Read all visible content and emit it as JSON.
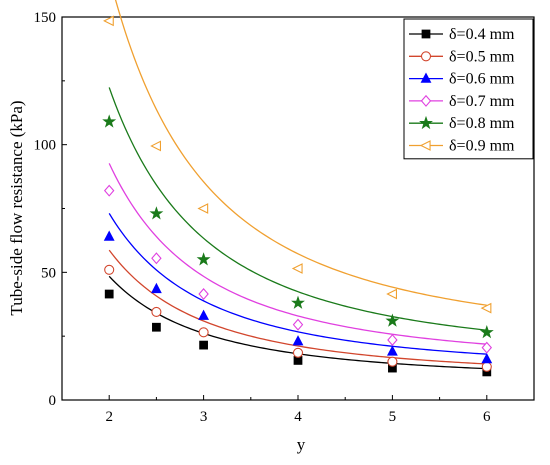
{
  "chart_data": {
    "type": "line",
    "xlabel": "y",
    "ylabel": "Tube-side flow resistance (kPa)",
    "xlim": [
      1.5,
      6.5
    ],
    "ylim": [
      0,
      150
    ],
    "xticks": [
      2,
      3,
      4,
      5,
      6
    ],
    "xtick_labels": [
      "2",
      "3",
      "4",
      "5",
      "6"
    ],
    "yticks": [
      0,
      50,
      100,
      150
    ],
    "ytick_labels": [
      "0",
      "50",
      "100",
      "150"
    ],
    "grid": false,
    "legend_position": "top-right",
    "x": [
      2,
      2.5,
      3,
      4,
      5,
      6
    ],
    "series": [
      {
        "name": "δ=0.4 mm",
        "color": "#000000",
        "marker": "square-filled",
        "values": [
          41.5,
          28.5,
          21.5,
          15.5,
          12.5,
          11.0
        ],
        "fit": {
          "a": 157.5,
          "b": -1.94,
          "c": 7.4
        }
      },
      {
        "name": "δ=0.5 mm",
        "color": "#d2462d",
        "marker": "circle-open",
        "values": [
          51.0,
          34.5,
          26.5,
          18.5,
          15.0,
          13.0
        ],
        "fit": {
          "a": 198.4,
          "b": -1.98,
          "c": 8.4
        }
      },
      {
        "name": "δ=0.6 mm",
        "color": "#0000ff",
        "marker": "triangle-filled",
        "values": [
          64.0,
          43.5,
          33.0,
          23.0,
          19.0,
          16.0
        ],
        "fit": {
          "a": 244.0,
          "b": -1.97,
          "c": 10.8
        }
      },
      {
        "name": "δ=0.7 mm",
        "color": "#e040e0",
        "marker": "diamond-open",
        "values": [
          82.0,
          55.5,
          41.5,
          29.5,
          23.5,
          20.5
        ],
        "fit": {
          "a": 318.7,
          "b": -2.0,
          "c": 13.0
        }
      },
      {
        "name": "δ=0.8 mm",
        "color": "#1a7a1a",
        "marker": "star-filled",
        "values": [
          109.0,
          73.0,
          55.0,
          38.0,
          31.0,
          26.5
        ],
        "fit": {
          "a": 420.8,
          "b": -1.97,
          "c": 15.0
        }
      },
      {
        "name": "δ=0.9 mm",
        "color": "#f0a030",
        "marker": "triangle-left-open",
        "values": [
          148.5,
          99.5,
          75.0,
          51.5,
          41.5,
          36.0
        ],
        "fit": {
          "a": 580.0,
          "b": -2.0,
          "c": 21.0
        }
      }
    ]
  }
}
